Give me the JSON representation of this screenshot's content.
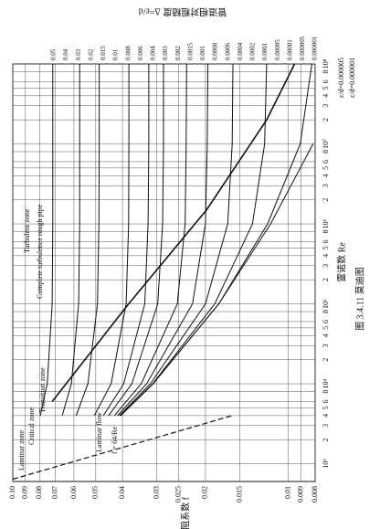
{
  "chart_data": {
    "type": "line",
    "x_label": "雷诺数 Re",
    "y_label": "摩阻系数 f",
    "roughness_title": "管道相对粗糙度 Δ=ε/d",
    "caption": "图 3.4.11 莫迪图",
    "x_log": true,
    "y_log": true,
    "grid": true,
    "xlim": [
      600,
      100000000
    ],
    "ylim": [
      0.008,
      0.1
    ],
    "xticks": [
      {
        "value": 1000,
        "label": "10³"
      },
      {
        "value": 2000,
        "label": "2"
      },
      {
        "value": 3000,
        "label": "3"
      },
      {
        "value": 4000,
        "label": "4"
      },
      {
        "value": 5000,
        "label": "5"
      },
      {
        "value": 6000,
        "label": "6"
      },
      {
        "value": 8000,
        "label": "8"
      },
      {
        "value": 10000,
        "label": "10⁴"
      },
      {
        "value": 20000,
        "label": "2"
      },
      {
        "value": 30000,
        "label": "3"
      },
      {
        "value": 40000,
        "label": "4"
      },
      {
        "value": 50000,
        "label": "5"
      },
      {
        "value": 60000,
        "label": "6"
      },
      {
        "value": 80000,
        "label": "8"
      },
      {
        "value": 100000,
        "label": "10⁵"
      },
      {
        "value": 200000,
        "label": "2"
      },
      {
        "value": 300000,
        "label": "3"
      },
      {
        "value": 400000,
        "label": "4"
      },
      {
        "value": 500000,
        "label": "5"
      },
      {
        "value": 600000,
        "label": "6"
      },
      {
        "value": 800000,
        "label": "8"
      },
      {
        "value": 1000000,
        "label": "10⁶"
      },
      {
        "value": 2000000,
        "label": "2"
      },
      {
        "value": 3000000,
        "label": "3"
      },
      {
        "value": 4000000,
        "label": "4"
      },
      {
        "value": 5000000,
        "label": "5"
      },
      {
        "value": 6000000,
        "label": "6"
      },
      {
        "value": 8000000,
        "label": "8"
      },
      {
        "value": 10000000,
        "label": "10⁷"
      },
      {
        "value": 20000000,
        "label": "2"
      },
      {
        "value": 30000000,
        "label": "3"
      },
      {
        "value": 40000000,
        "label": "4"
      },
      {
        "value": 50000000,
        "label": "5"
      },
      {
        "value": 60000000,
        "label": "6"
      },
      {
        "value": 80000000,
        "label": "8"
      },
      {
        "value": 100000000,
        "label": "10⁸"
      }
    ],
    "yticks": [
      {
        "value": 0.1,
        "label": "0.10"
      },
      0.09,
      0.08,
      0.07,
      0.06,
      0.05,
      0.04,
      0.03,
      0.025,
      0.02,
      0.015,
      0.01,
      0.009,
      0.008
    ],
    "roughness_labels": [
      "0.05",
      "0.04",
      "0.03",
      "0.02",
      "0.015",
      "0.01",
      "0.008",
      "0.006",
      "0.004",
      "0.003",
      "0.002",
      "0.0015",
      "0.001",
      "0.0008",
      "0.0006",
      "0.0004",
      "0.0002",
      "0.0001",
      "0.00005",
      "0.00001",
      "0.000005",
      "0.000001"
    ],
    "x": [
      4000,
      10000,
      100000,
      1000000,
      10000000,
      100000000
    ],
    "series": [
      {
        "color": "#111",
        "values": [
          0.0794,
          0.075,
          0.072,
          0.0716,
          0.0716,
          0.0716
        ]
      },
      {
        "color": "#111",
        "values": [
          0.0662,
          0.0613,
          0.0577,
          0.0572,
          0.0572,
          0.0572
        ]
      },
      {
        "color": "#111",
        "values": [
          0.0589,
          0.0534,
          0.0493,
          0.0487,
          0.0486,
          0.0486
        ]
      },
      {
        "color": "#111",
        "values": [
          0.0506,
          0.044,
          0.0388,
          0.038,
          0.0379,
          0.0379
        ]
      },
      {
        "color": "#111",
        "values": [
          0.0469,
          0.0396,
          0.0332,
          0.0323,
          0.0321,
          0.0321
        ]
      },
      {
        "color": "#111",
        "values": [
          0.0449,
          0.037,
          0.0298,
          0.0286,
          0.0284,
          0.0284
        ]
      },
      {
        "color": "#111",
        "values": [
          0.0428,
          0.0342,
          0.0253,
          0.0237,
          0.0235,
          0.0234
        ]
      },
      {
        "color": "#111",
        "values": [
          0.0417,
          0.0327,
          0.0223,
          0.02,
          0.0197,
          0.0196
        ]
      },
      {
        "color": "#111",
        "values": [
          0.041,
          0.0317,
          0.02,
          0.0166,
          0.016,
          0.0159
        ]
      },
      {
        "color": "#111",
        "values": [
          0.0407,
          0.0311,
          0.0185,
          0.0135,
          0.0122,
          0.012
        ]
      },
      {
        "color": "#111",
        "values": [
          0.0406,
          0.031,
          0.0179,
          0.0119,
          0.00906,
          0.00822
        ]
      },
      {
        "color": "#111",
        "values": [
          0.0406,
          0.031,
          0.0179,
          0.0116,
          0.00814,
          null
        ]
      }
    ],
    "laminar": {
      "x": [
        640,
        2300,
        4000
      ],
      "values": [
        0.1,
        0.0278,
        0.016
      ]
    },
    "boundary": {
      "x": [
        6000,
        100000,
        1500000,
        20000000,
        100000000
      ],
      "values": [
        0.072,
        0.038,
        0.0198,
        0.012,
        0.0095
      ]
    },
    "annotations": [
      "Turbulent zone",
      "Complete turbulence rough pipe",
      "Transition zone",
      "Laminar zone",
      "Critical zone",
      "Laminar flow",
      "f = 64/Re",
      "ε/d=0.000005",
      "ε/d=0.000001"
    ]
  }
}
